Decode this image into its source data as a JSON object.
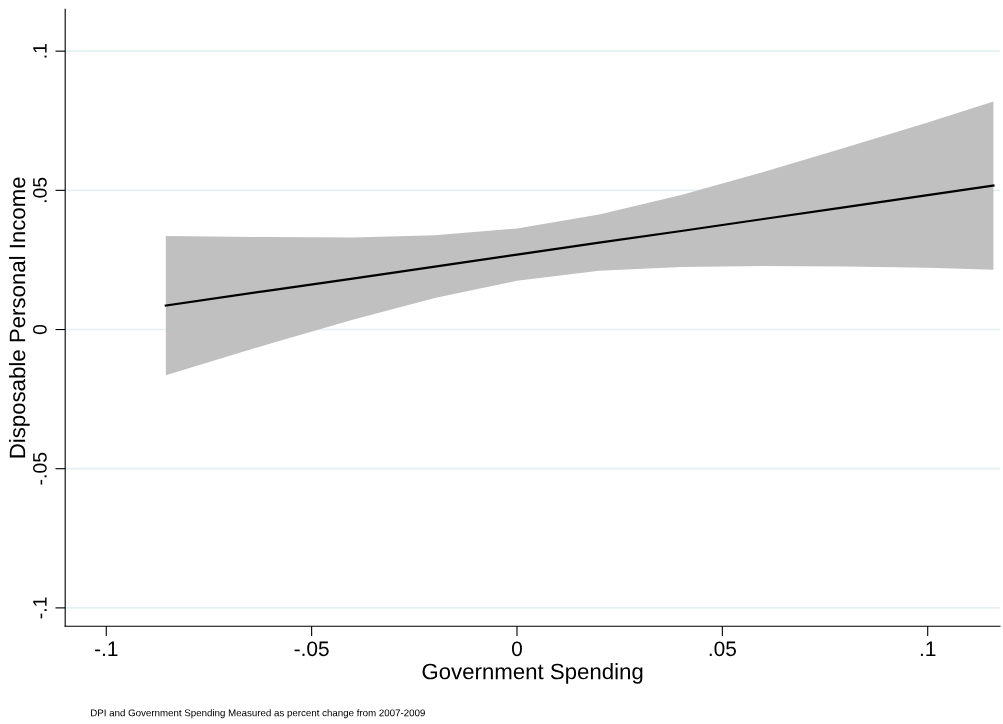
{
  "chart_data": {
    "type": "line",
    "xlabel": "Government Spending",
    "ylabel": "Disposable Personal Income",
    "annotations": [
      "DPI and Government Spending Measured as percent change from 2007-2009"
    ],
    "x": [
      -0.0855,
      -0.06,
      -0.04,
      -0.02,
      0,
      0.02,
      0.04,
      0.06,
      0.08,
      0.1,
      0.116
    ],
    "series": [
      {
        "color": "#000000",
        "values": [
          0.0086,
          0.0141,
          0.0183,
          0.0226,
          0.0269,
          0.0312,
          0.0354,
          0.0397,
          0.044,
          0.0483,
          0.0517
        ],
        "lower": [
          -0.0164,
          -0.005,
          0.0035,
          0.0113,
          0.0175,
          0.0211,
          0.0225,
          0.0228,
          0.0226,
          0.0222,
          0.0215
        ],
        "upper": [
          0.0336,
          0.0332,
          0.0331,
          0.0339,
          0.0363,
          0.0413,
          0.0483,
          0.0566,
          0.0654,
          0.0744,
          0.0819
        ]
      }
    ],
    "xlim": [
      -0.11,
      0.1176
    ],
    "ylim": [
      -0.1066,
      0.115
    ],
    "xticks": [
      {
        "value": -0.1,
        "label": "-.1"
      },
      {
        "value": -0.05,
        "label": "-.05"
      },
      0,
      {
        "value": 0.05,
        "label": ".05"
      },
      {
        "value": 0.1,
        "label": ".1"
      }
    ],
    "yticks": [
      {
        "value": -0.1,
        "label": "-.1"
      },
      {
        "value": -0.05,
        "label": "-.05"
      },
      0,
      {
        "value": 0.05,
        "label": ".05"
      },
      {
        "value": 0.1,
        "label": ".1"
      }
    ],
    "grid": "y",
    "legend": false,
    "marker": "none",
    "line_style": "solid"
  }
}
